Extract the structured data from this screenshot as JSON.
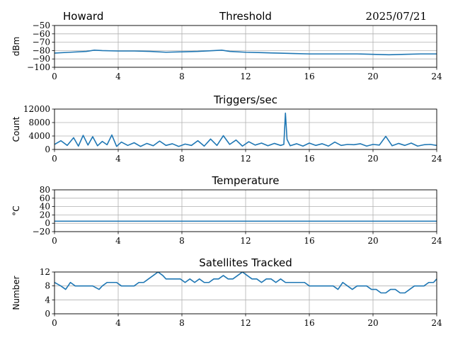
{
  "header": {
    "left": "Howard",
    "right": "2025/07/21"
  },
  "colors": {
    "line": "#1f77b4",
    "grid": "#b0b0b0",
    "axis": "#000000"
  },
  "chart_data": [
    {
      "type": "line",
      "title": "Threshold",
      "ylabel": "dBm",
      "xlim": [
        0,
        24
      ],
      "ylim": [
        -100,
        -50
      ],
      "xticks": [
        "0",
        "4",
        "8",
        "12",
        "16",
        "20",
        "24"
      ],
      "yticks": [
        "−50",
        "−60",
        "−70",
        "−80",
        "−90",
        "−100"
      ],
      "grid": true,
      "series": [
        {
          "x": [
            0,
            1,
            2,
            2.5,
            3,
            4,
            5,
            6,
            7,
            8,
            9,
            10,
            10.5,
            11,
            12,
            13,
            14,
            15,
            16,
            17,
            18,
            19,
            20,
            21,
            22,
            23,
            24
          ],
          "values": [
            -83,
            -82,
            -81,
            -79.5,
            -80,
            -80.5,
            -80.5,
            -81,
            -82,
            -81.5,
            -81,
            -80,
            -79.5,
            -81,
            -82,
            -82.5,
            -83,
            -83.5,
            -84,
            -84,
            -84,
            -84,
            -84.5,
            -85,
            -84.5,
            -84,
            -84
          ]
        }
      ]
    },
    {
      "type": "line",
      "title": "Triggers/sec",
      "ylabel": "Count",
      "xlim": [
        0,
        24
      ],
      "ylim": [
        0,
        12000
      ],
      "xticks": [
        "0",
        "4",
        "8",
        "12",
        "16",
        "20",
        "24"
      ],
      "yticks": [
        "12000",
        "8000",
        "4000",
        "0"
      ],
      "grid": true,
      "series": [
        {
          "x": [
            0,
            0.4,
            0.8,
            1.2,
            1.5,
            1.8,
            2.1,
            2.4,
            2.7,
            3.0,
            3.3,
            3.6,
            3.9,
            4.2,
            4.6,
            5.0,
            5.4,
            5.8,
            6.2,
            6.6,
            7.0,
            7.4,
            7.8,
            8.2,
            8.6,
            9.0,
            9.4,
            9.8,
            10.2,
            10.6,
            11.0,
            11.4,
            11.8,
            12.2,
            12.6,
            13.0,
            13.4,
            13.8,
            14.2,
            14.4,
            14.5,
            14.6,
            14.8,
            15.2,
            15.6,
            16.0,
            16.4,
            16.8,
            17.2,
            17.6,
            18.0,
            18.4,
            18.8,
            19.2,
            19.6,
            20.0,
            20.4,
            20.8,
            21.2,
            21.6,
            22.0,
            22.4,
            22.8,
            23.2,
            23.6,
            24
          ],
          "values": [
            1500,
            2600,
            1200,
            3500,
            1000,
            4200,
            1300,
            3800,
            1100,
            2400,
            1400,
            4300,
            900,
            2200,
            1200,
            2000,
            900,
            1800,
            1100,
            2500,
            1200,
            1700,
            900,
            1600,
            1200,
            2600,
            1000,
            3100,
            1200,
            4100,
            1500,
            2800,
            1000,
            2300,
            1300,
            1900,
            1100,
            1800,
            1200,
            1500,
            10800,
            3000,
            1100,
            1700,
            1000,
            1900,
            1200,
            1700,
            1000,
            2200,
            1200,
            1500,
            1400,
            1700,
            1000,
            1500,
            1300,
            3900,
            1100,
            1800,
            1200,
            1900,
            1000,
            1400,
            1500,
            1200
          ]
        }
      ]
    },
    {
      "type": "line",
      "title": "Temperature",
      "ylabel": "°C",
      "xlim": [
        0,
        24
      ],
      "ylim": [
        -20,
        80
      ],
      "xticks": [
        "0",
        "4",
        "8",
        "12",
        "16",
        "20",
        "24"
      ],
      "yticks": [
        "80",
        "60",
        "40",
        "20",
        "0",
        "−20"
      ],
      "grid": true,
      "series": [
        {
          "x": [
            0,
            24
          ],
          "values": [
            5,
            5
          ]
        }
      ]
    },
    {
      "type": "line",
      "title": "Satellites Tracked",
      "ylabel": "Number",
      "xlim": [
        0,
        24
      ],
      "ylim": [
        0,
        12
      ],
      "xticks": [
        "0",
        "4",
        "8",
        "12",
        "16",
        "20",
        "24"
      ],
      "yticks": [
        "12",
        "8",
        "4",
        "0"
      ],
      "grid": true,
      "series": [
        {
          "x": [
            0,
            0.4,
            0.7,
            1.0,
            1.3,
            1.6,
            2.0,
            2.4,
            2.8,
            3.0,
            3.3,
            3.6,
            3.9,
            4.2,
            4.5,
            4.8,
            5.0,
            5.3,
            5.6,
            5.9,
            6.2,
            6.5,
            6.8,
            7.0,
            7.3,
            7.6,
            7.9,
            8.2,
            8.5,
            8.8,
            9.1,
            9.4,
            9.7,
            10.0,
            10.3,
            10.6,
            10.9,
            11.2,
            11.5,
            11.8,
            12.1,
            12.4,
            12.7,
            13.0,
            13.3,
            13.6,
            13.9,
            14.2,
            14.5,
            14.8,
            15.1,
            15.4,
            15.7,
            16.0,
            16.3,
            16.6,
            16.9,
            17.2,
            17.5,
            17.8,
            18.1,
            18.4,
            18.7,
            19.0,
            19.3,
            19.6,
            19.9,
            20.2,
            20.5,
            20.8,
            21.1,
            21.4,
            21.7,
            22.0,
            22.3,
            22.6,
            22.9,
            23.2,
            23.5,
            23.8,
            24
          ],
          "values": [
            9,
            8,
            7,
            9,
            8,
            8,
            8,
            8,
            7,
            8,
            9,
            9,
            9,
            8,
            8,
            8,
            8,
            9,
            9,
            10,
            11,
            12,
            11,
            10,
            10,
            10,
            10,
            9,
            10,
            9,
            10,
            9,
            9,
            10,
            10,
            11,
            10,
            10,
            11,
            12,
            11,
            10,
            10,
            9,
            10,
            10,
            9,
            10,
            9,
            9,
            9,
            9,
            9,
            8,
            8,
            8,
            8,
            8,
            8,
            7,
            9,
            8,
            7,
            8,
            8,
            8,
            7,
            7,
            6,
            6,
            7,
            7,
            6,
            6,
            7,
            8,
            8,
            8,
            9,
            9,
            10
          ]
        }
      ]
    }
  ]
}
